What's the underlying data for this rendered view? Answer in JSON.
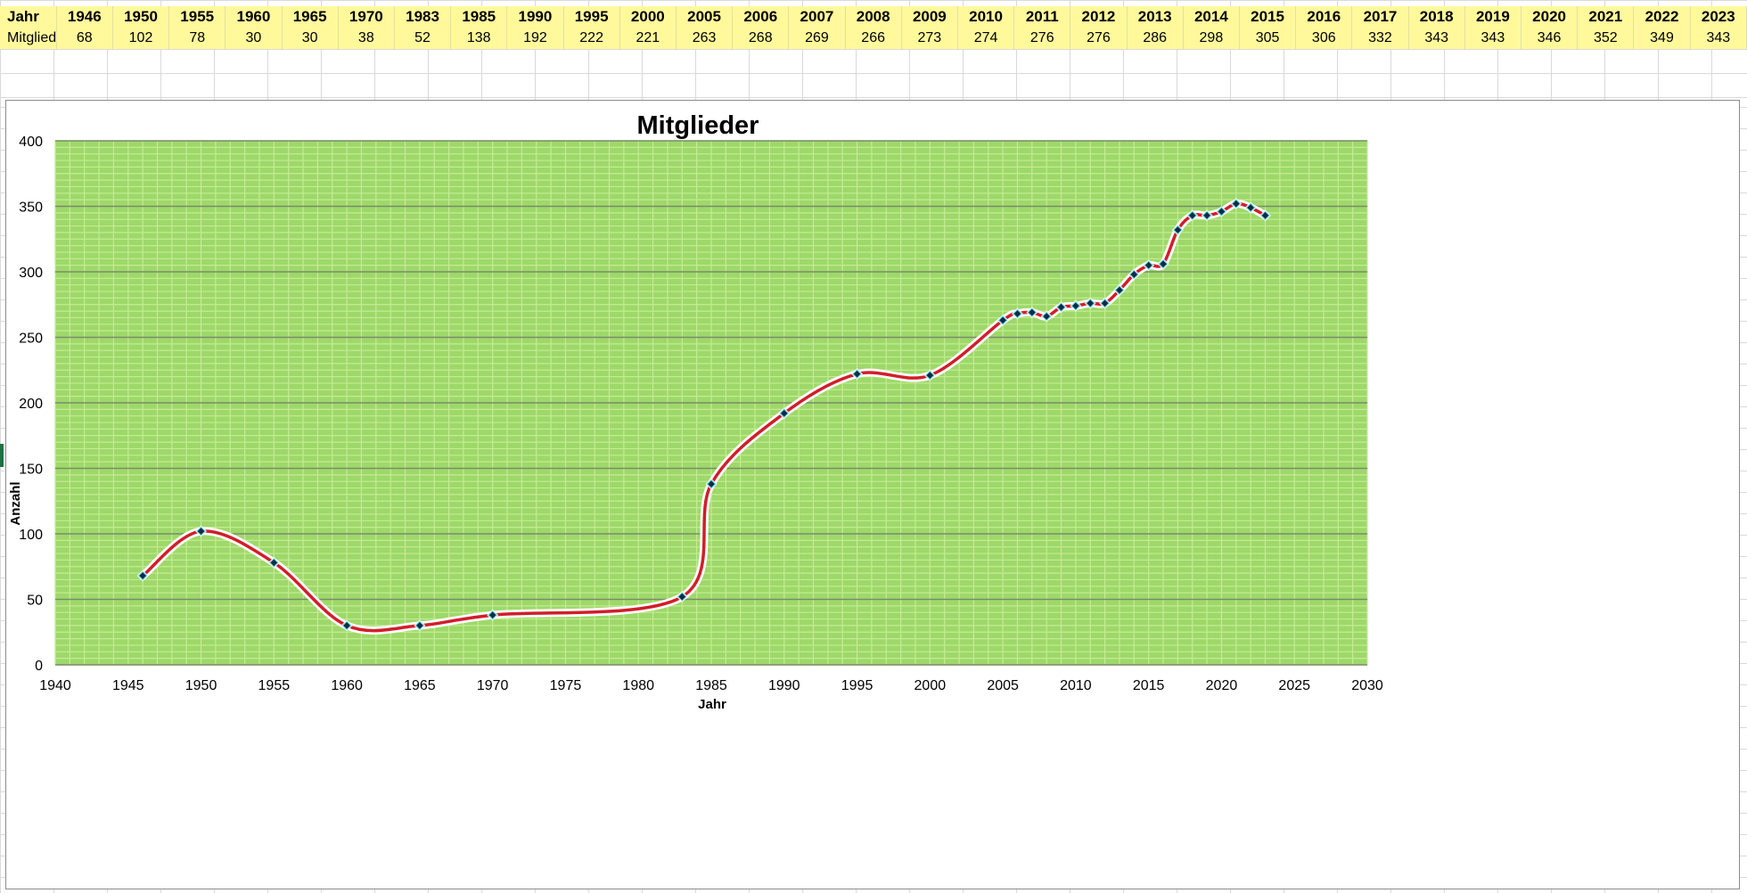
{
  "table": {
    "row1_label": "Jahr",
    "row2_label": "Mitglieder",
    "years": [
      "1946",
      "1950",
      "1955",
      "1960",
      "1965",
      "1970",
      "1983",
      "1985",
      "1990",
      "1995",
      "2000",
      "2005",
      "2006",
      "2007",
      "2008",
      "2009",
      "2010",
      "2011",
      "2012",
      "2013",
      "2014",
      "2015",
      "2016",
      "2017",
      "2018",
      "2019",
      "2020",
      "2021",
      "2022",
      "2023"
    ],
    "members": [
      "68",
      "102",
      "78",
      "30",
      "30",
      "38",
      "52",
      "138",
      "192",
      "222",
      "221",
      "263",
      "268",
      "269",
      "266",
      "273",
      "274",
      "276",
      "276",
      "286",
      "298",
      "305",
      "306",
      "332",
      "343",
      "343",
      "346",
      "352",
      "349",
      "343"
    ]
  },
  "chart_data": {
    "type": "line",
    "title": "Mitglieder",
    "xlabel": "Jahr",
    "ylabel": "Anzahl",
    "xlim": [
      1940,
      2030
    ],
    "ylim": [
      0,
      400
    ],
    "xticks": [
      1940,
      1945,
      1950,
      1955,
      1960,
      1965,
      1970,
      1975,
      1980,
      1985,
      1990,
      1995,
      2000,
      2005,
      2010,
      2015,
      2020,
      2025,
      2030
    ],
    "yticks": [
      0,
      50,
      100,
      150,
      200,
      250,
      300,
      350,
      400
    ],
    "grid": true,
    "smooth": true,
    "colors": {
      "plot_background": "#9ed86a",
      "minor_grid": "#c4ec93",
      "major_grid": "#7a8a6a",
      "line": "#d11e2a",
      "marker": "#0d2b44"
    },
    "series": [
      {
        "points": [
          [
            1946,
            68
          ],
          [
            1950,
            102
          ],
          [
            1955,
            78
          ],
          [
            1960,
            30
          ],
          [
            1965,
            30
          ],
          [
            1970,
            38
          ],
          [
            1983,
            52
          ],
          [
            1985,
            138
          ],
          [
            1990,
            192
          ],
          [
            1995,
            222
          ],
          [
            2000,
            221
          ],
          [
            2005,
            263
          ],
          [
            2006,
            268
          ],
          [
            2007,
            269
          ],
          [
            2008,
            266
          ],
          [
            2009,
            273
          ],
          [
            2010,
            274
          ],
          [
            2011,
            276
          ],
          [
            2012,
            276
          ],
          [
            2013,
            286
          ],
          [
            2014,
            298
          ],
          [
            2015,
            305
          ],
          [
            2016,
            306
          ],
          [
            2017,
            332
          ],
          [
            2018,
            343
          ],
          [
            2019,
            343
          ],
          [
            2020,
            346
          ],
          [
            2021,
            352
          ],
          [
            2022,
            349
          ],
          [
            2023,
            343
          ]
        ]
      }
    ]
  }
}
